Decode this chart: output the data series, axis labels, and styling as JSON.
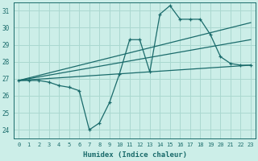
{
  "xlabel": "Humidex (Indice chaleur)",
  "bg_color": "#cceee8",
  "grid_color": "#aad8d0",
  "line_color": "#1a6b6b",
  "xlim": [
    -0.5,
    23.5
  ],
  "ylim": [
    23.5,
    31.5
  ],
  "yticks": [
    24,
    25,
    26,
    27,
    28,
    29,
    30,
    31
  ],
  "xticks": [
    0,
    1,
    2,
    3,
    4,
    5,
    6,
    7,
    8,
    9,
    10,
    11,
    12,
    13,
    14,
    15,
    16,
    17,
    18,
    19,
    20,
    21,
    22,
    23
  ],
  "series": [
    {
      "x": [
        0,
        1,
        2,
        3,
        4,
        5,
        6,
        7,
        8,
        9,
        10,
        11,
        12,
        13,
        14,
        15,
        16,
        17,
        18,
        19,
        20,
        21,
        22,
        23
      ],
      "y": [
        26.9,
        26.9,
        26.9,
        26.8,
        26.6,
        26.5,
        26.3,
        24.0,
        24.4,
        25.6,
        27.3,
        29.3,
        29.3,
        27.4,
        30.8,
        31.3,
        30.5,
        30.5,
        30.5,
        29.6,
        28.3,
        27.9,
        27.8,
        27.8
      ]
    },
    {
      "x": [
        0,
        23
      ],
      "y": [
        26.9,
        30.3
      ]
    },
    {
      "x": [
        0,
        23
      ],
      "y": [
        26.9,
        29.3
      ]
    },
    {
      "x": [
        0,
        23
      ],
      "y": [
        26.9,
        27.8
      ]
    }
  ]
}
